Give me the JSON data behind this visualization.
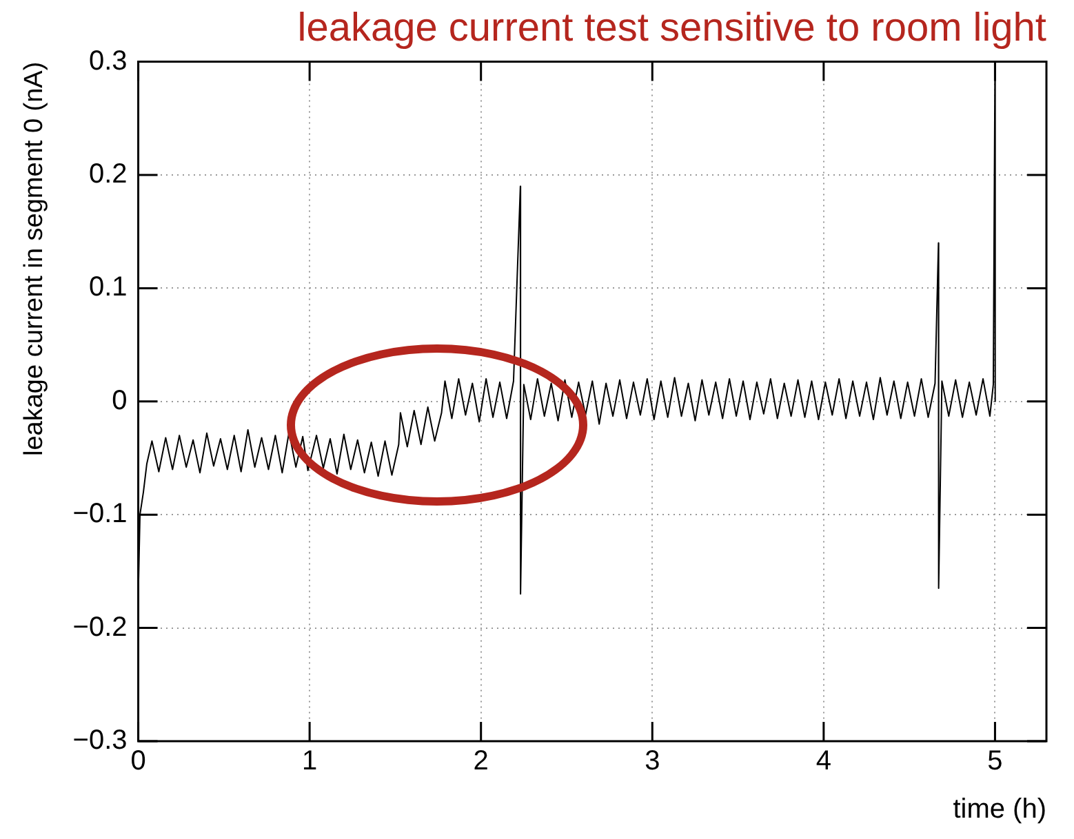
{
  "chart_data": {
    "type": "line",
    "title": "leakage current test sensitive to room light",
    "xlabel": "time (h)",
    "ylabel": "leakage current in segment 0 (nA)",
    "xlim": [
      0,
      5.3
    ],
    "xticks": [
      0,
      1,
      2,
      3,
      4,
      5
    ],
    "ylim": [
      -0.3,
      0.3
    ],
    "yticks": [
      -0.3,
      -0.2,
      -0.1,
      0,
      0.1,
      0.2,
      0.3
    ],
    "grid": true,
    "legend": false,
    "marker": "none",
    "line_style": "solid",
    "series": [
      {
        "color": "#000000",
        "x": [
          0,
          0.01,
          0.03,
          0.05,
          0.08,
          0.12,
          0.16,
          0.2,
          0.24,
          0.28,
          0.32,
          0.36,
          0.4,
          0.44,
          0.48,
          0.52,
          0.56,
          0.6,
          0.64,
          0.68,
          0.72,
          0.76,
          0.8,
          0.84,
          0.88,
          0.92,
          0.96,
          0.99,
          1.04,
          1.08,
          1.12,
          1.16,
          1.2,
          1.24,
          1.28,
          1.32,
          1.36,
          1.4,
          1.44,
          1.48,
          1.52,
          1.53,
          1.57,
          1.61,
          1.65,
          1.69,
          1.73,
          1.77,
          1.79,
          1.83,
          1.87,
          1.91,
          1.95,
          1.99,
          2.03,
          2.07,
          2.11,
          2.15,
          2.19,
          2.23,
          2.231,
          2.25,
          2.29,
          2.33,
          2.37,
          2.41,
          2.45,
          2.49,
          2.53,
          2.57,
          2.61,
          2.65,
          2.69,
          2.73,
          2.77,
          2.81,
          2.85,
          2.89,
          2.93,
          2.97,
          3.01,
          3.05,
          3.09,
          3.13,
          3.17,
          3.21,
          3.25,
          3.29,
          3.33,
          3.37,
          3.41,
          3.45,
          3.49,
          3.53,
          3.57,
          3.61,
          3.65,
          3.69,
          3.73,
          3.77,
          3.81,
          3.85,
          3.89,
          3.93,
          3.97,
          4.01,
          4.05,
          4.09,
          4.13,
          4.17,
          4.21,
          4.25,
          4.29,
          4.33,
          4.37,
          4.41,
          4.45,
          4.49,
          4.53,
          4.57,
          4.61,
          4.65,
          4.67,
          4.671,
          4.69,
          4.73,
          4.77,
          4.81,
          4.85,
          4.89,
          4.93,
          4.97,
          4.99,
          5.0,
          5.001
        ],
        "values": [
          -0.17,
          -0.1,
          -0.08,
          -0.055,
          -0.035,
          -0.062,
          -0.032,
          -0.06,
          -0.03,
          -0.058,
          -0.034,
          -0.063,
          -0.028,
          -0.057,
          -0.033,
          -0.06,
          -0.03,
          -0.062,
          -0.025,
          -0.058,
          -0.032,
          -0.06,
          -0.03,
          -0.063,
          -0.027,
          -0.058,
          -0.031,
          -0.061,
          -0.03,
          -0.059,
          -0.033,
          -0.064,
          -0.029,
          -0.06,
          -0.034,
          -0.063,
          -0.036,
          -0.066,
          -0.035,
          -0.065,
          -0.038,
          -0.01,
          -0.04,
          -0.008,
          -0.038,
          -0.005,
          -0.035,
          -0.01,
          0.018,
          -0.015,
          0.02,
          -0.012,
          0.016,
          -0.018,
          0.02,
          -0.014,
          0.017,
          -0.015,
          0.018,
          0.19,
          -0.17,
          0.015,
          -0.016,
          0.02,
          -0.013,
          0.016,
          -0.017,
          0.019,
          -0.014,
          0.017,
          -0.012,
          0.018,
          -0.02,
          0.016,
          -0.013,
          0.019,
          -0.015,
          0.017,
          -0.012,
          0.02,
          -0.016,
          0.018,
          -0.014,
          0.021,
          -0.013,
          0.016,
          -0.017,
          0.019,
          -0.012,
          0.017,
          -0.015,
          0.02,
          -0.013,
          0.018,
          -0.016,
          0.017,
          -0.011,
          0.02,
          -0.015,
          0.016,
          -0.013,
          0.019,
          -0.014,
          0.018,
          -0.016,
          0.017,
          -0.012,
          0.02,
          -0.015,
          0.018,
          -0.013,
          0.017,
          -0.016,
          0.021,
          -0.012,
          0.018,
          -0.015,
          0.017,
          -0.013,
          0.02,
          -0.014,
          0.016,
          0.14,
          -0.165,
          0.018,
          -0.013,
          0.019,
          -0.014,
          0.017,
          -0.012,
          0.02,
          -0.013,
          0.015,
          0.3,
          0.0
        ]
      }
    ]
  }
}
